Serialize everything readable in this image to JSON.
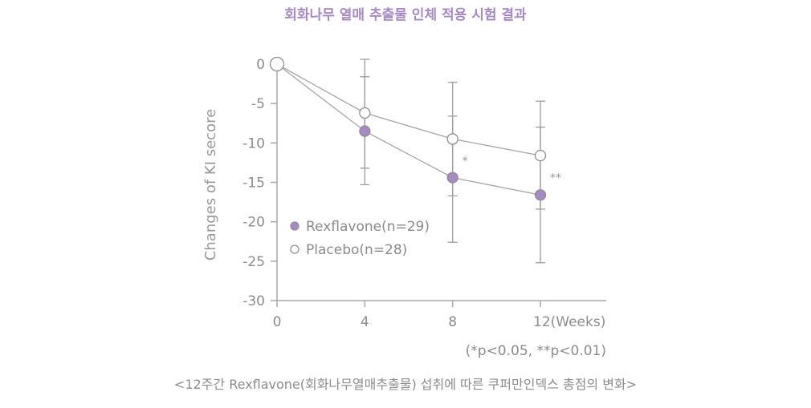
{
  "chart_data": {
    "type": "line",
    "title": "회화나무 열매 추출물 인체 적용 시험 결과",
    "ylabel": "Changes of KI secore",
    "x": [
      0,
      4,
      8,
      12
    ],
    "x_tick_labels": [
      "0",
      "4",
      "8",
      "12(Weeks)"
    ],
    "y_ticks": [
      0,
      -5,
      -10,
      -15,
      -20,
      -25,
      -30
    ],
    "y_tick_labels": [
      "0",
      "-5",
      "-10",
      "-15",
      "-20",
      "-25",
      "-30"
    ],
    "xlim": [
      0,
      12
    ],
    "ylim": [
      -30,
      0
    ],
    "grid": false,
    "legend_position": "lower-left",
    "series": [
      {
        "name": "Rexflavone(n=29)",
        "marker": "filled-circle",
        "color": "#a58ac3",
        "values": [
          0,
          -8.5,
          -14.4,
          -16.6
        ],
        "err_low": [
          0,
          -15.3,
          -22.6,
          -25.2
        ],
        "err_high": [
          0,
          -1.6,
          -6.6,
          -8.0
        ]
      },
      {
        "name": "Placebo(n=28)",
        "marker": "open-circle",
        "color": "#ffffff",
        "values": [
          0,
          -6.2,
          -9.5,
          -11.6
        ],
        "err_low": [
          0,
          -13.2,
          -16.7,
          -18.4
        ],
        "err_high": [
          0,
          0.6,
          -2.3,
          -4.7
        ]
      }
    ],
    "significance": [
      {
        "x": 8,
        "label": "*"
      },
      {
        "x": 12,
        "label": "**"
      }
    ],
    "note": "(*p<0.05, **p<0.01)",
    "caption": "<12주간 Rexflavone(회화나무열매추출물) 섭취에 따른 쿠퍼만인덱스 총점의 변화>"
  }
}
